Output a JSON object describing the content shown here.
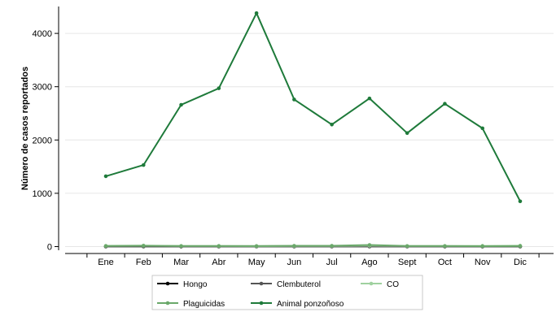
{
  "chart_data": {
    "type": "line",
    "title": "",
    "xlabel": "",
    "ylabel": "Número de casos reportados",
    "categories": [
      "Ene",
      "Feb",
      "Mar",
      "Abr",
      "May",
      "Jun",
      "Jul",
      "Ago",
      "Sept",
      "Oct",
      "Nov",
      "Dic"
    ],
    "ylim": [
      -100,
      4400
    ],
    "yticks": [
      0,
      1000,
      2000,
      3000,
      4000
    ],
    "grid": true,
    "legend_position": "bottom",
    "series": [
      {
        "name": "Hongo",
        "color": "#000000",
        "values": [
          2,
          3,
          1,
          2,
          3,
          2,
          4,
          6,
          3,
          2,
          1,
          2
        ]
      },
      {
        "name": "Clembuterol",
        "color": "#555555",
        "values": [
          0,
          0,
          0,
          0,
          0,
          0,
          0,
          0,
          0,
          0,
          0,
          0
        ]
      },
      {
        "name": "CO",
        "color": "#9fd19f",
        "values": [
          15,
          20,
          12,
          10,
          8,
          10,
          12,
          18,
          10,
          12,
          14,
          18
        ]
      },
      {
        "name": "Plaguicidas",
        "color": "#6aa86a",
        "values": [
          10,
          15,
          10,
          12,
          10,
          15,
          15,
          30,
          10,
          10,
          8,
          10
        ]
      },
      {
        "name": "Animal ponzoñoso",
        "color": "#1e7a3a",
        "values": [
          1320,
          1530,
          2660,
          2970,
          4380,
          2760,
          2290,
          2780,
          2130,
          2680,
          2220,
          850
        ]
      }
    ]
  }
}
